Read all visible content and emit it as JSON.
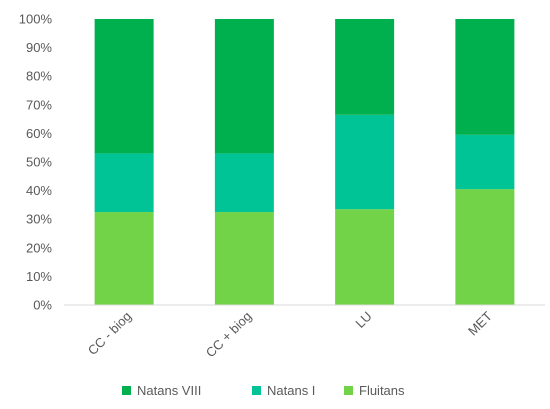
{
  "chart_data": {
    "type": "bar",
    "stacked": true,
    "percent": true,
    "categories": [
      "CC - biog",
      "CC + biog",
      "LU",
      "MET"
    ],
    "series": [
      {
        "name": "Fluitans",
        "values": [
          32.5,
          32.5,
          33.5,
          40.5
        ],
        "color": "#72d348"
      },
      {
        "name": "Natans I",
        "values": [
          20.5,
          20.5,
          33.0,
          19.0
        ],
        "color": "#00c396"
      },
      {
        "name": "Natans VIII",
        "values": [
          47.0,
          47.0,
          33.5,
          40.5
        ],
        "color": "#00b04f"
      }
    ],
    "legend_order": [
      "Natans VIII",
      "Natans I",
      "Fluitans"
    ],
    "yticks": [
      "0%",
      "10%",
      "20%",
      "30%",
      "40%",
      "50%",
      "60%",
      "70%",
      "80%",
      "90%",
      "100%"
    ],
    "ylim": [
      0,
      100
    ],
    "grid": false,
    "legend_position": "bottom",
    "title": "",
    "xlabel": "",
    "ylabel": ""
  }
}
